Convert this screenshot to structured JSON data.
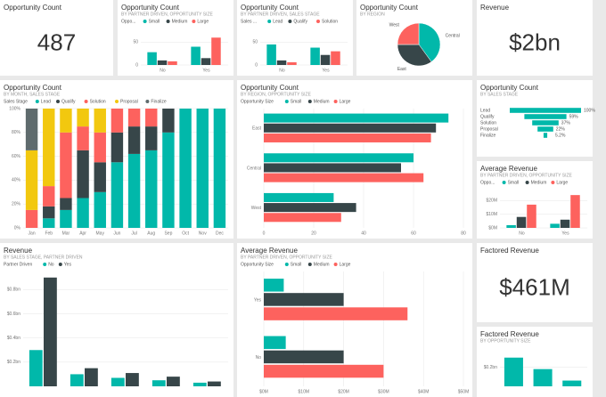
{
  "chart_data": [
    {
      "type": "card",
      "title": "Opportunity Count",
      "value": "487"
    },
    {
      "type": "column",
      "title": "Opportunity Count",
      "subtitle": "BY PARTNER DRIVEN, OPPORTUNITY SIZE",
      "legend_title": "Oppo...",
      "categories": [
        "No",
        "Yes"
      ],
      "ylim": [
        0,
        80
      ],
      "yticks": [
        0,
        50
      ],
      "series": [
        {
          "name": "Small",
          "color": "#01b8aa",
          "values": [
            28,
            40
          ]
        },
        {
          "name": "Medium",
          "color": "#374649",
          "values": [
            10,
            15
          ]
        },
        {
          "name": "Large",
          "color": "#fd625e",
          "values": [
            8,
            60
          ]
        }
      ]
    },
    {
      "type": "column",
      "title": "Opportunity Count",
      "subtitle": "BY PARTNER DRIVEN, SALES STAGE",
      "legend_title": "Sales ...",
      "categories": [
        "No",
        "Yes"
      ],
      "ylim": [
        0,
        80
      ],
      "yticks": [
        0,
        50
      ],
      "series": [
        {
          "name": "Lead",
          "color": "#01b8aa",
          "values": [
            45,
            38
          ]
        },
        {
          "name": "Qualify",
          "color": "#374649",
          "values": [
            10,
            22
          ]
        },
        {
          "name": "Solution",
          "color": "#fd625e",
          "values": [
            6,
            30
          ]
        }
      ]
    },
    {
      "type": "pie",
      "title": "Opportunity Count",
      "subtitle": "BY REGION",
      "categories": [
        "Central",
        "East",
        "West"
      ],
      "values": [
        40,
        35,
        25
      ],
      "colors": [
        "#01b8aa",
        "#374649",
        "#fd625e"
      ]
    },
    {
      "type": "card",
      "title": "Revenue",
      "value": "$2bn"
    },
    {
      "type": "column",
      "stacked": true,
      "title": "Opportunity Count",
      "subtitle": "BY MONTH, SALES STAGE",
      "legend_title": "Sales Stage",
      "categories": [
        "Jan",
        "Feb",
        "Mar",
        "Apr",
        "May",
        "Jun",
        "Jul",
        "Aug",
        "Sep",
        "Oct",
        "Nov",
        "Dec"
      ],
      "ylim": [
        0,
        100
      ],
      "yticks": [
        {
          "value": 0,
          "label": "0%"
        },
        {
          "value": 20,
          "label": "20%"
        },
        {
          "value": 40,
          "label": "40%"
        },
        {
          "value": 60,
          "label": "60%"
        },
        {
          "value": 80,
          "label": "80%"
        },
        {
          "value": 100,
          "label": "100%"
        }
      ],
      "series": [
        {
          "name": "Lead",
          "color": "#01b8aa",
          "values": [
            0,
            8,
            15,
            25,
            30,
            55,
            62,
            65,
            80,
            100,
            100,
            100
          ]
        },
        {
          "name": "Qualify",
          "color": "#374649",
          "values": [
            0,
            10,
            10,
            40,
            25,
            25,
            23,
            20,
            20,
            0,
            0,
            0
          ]
        },
        {
          "name": "Solution",
          "color": "#fd625e",
          "values": [
            15,
            17,
            55,
            20,
            25,
            20,
            15,
            15,
            0,
            0,
            0,
            0
          ]
        },
        {
          "name": "Proposal",
          "color": "#f2c80f",
          "values": [
            50,
            65,
            20,
            15,
            20,
            0,
            0,
            0,
            0,
            0,
            0,
            0
          ]
        },
        {
          "name": "Finalize",
          "color": "#5f6b6d",
          "values": [
            35,
            0,
            0,
            0,
            0,
            0,
            0,
            0,
            0,
            0,
            0,
            0
          ]
        }
      ]
    },
    {
      "type": "hbar",
      "title": "Opportunity Count",
      "subtitle": "BY REGION, OPPORTUNITY SIZE",
      "legend_title": "Opportunity Size",
      "categories": [
        "East",
        "Central",
        "West"
      ],
      "xlim": [
        0,
        80
      ],
      "xticks": [
        0,
        20,
        40,
        60,
        80
      ],
      "series": [
        {
          "name": "Small",
          "color": "#01b8aa",
          "values": [
            74,
            60,
            28
          ]
        },
        {
          "name": "Medium",
          "color": "#374649",
          "values": [
            69,
            55,
            37
          ]
        },
        {
          "name": "Large",
          "color": "#fd625e",
          "values": [
            67,
            64,
            31
          ]
        }
      ]
    },
    {
      "type": "funnel",
      "title": "Opportunity Count",
      "subtitle": "BY SALES STAGE",
      "color": "#01b8aa",
      "categories": [
        "Lead",
        "Qualify",
        "Solution",
        "Proposal",
        "Finalize"
      ],
      "values": [
        100,
        59,
        37,
        22,
        5.2
      ],
      "value_labels": [
        "100%",
        "59%",
        "37%",
        "22%",
        "5.2%"
      ]
    },
    {
      "type": "column",
      "title": "Average Revenue",
      "subtitle": "BY PARTNER DRIVEN, OPPORTUNITY SIZE",
      "legend_title": "Oppo...",
      "categories": [
        "No",
        "Yes"
      ],
      "ylim": [
        0,
        28
      ],
      "yticks": [
        {
          "value": 0,
          "label": "$0M"
        },
        {
          "value": 10,
          "label": "$10M"
        },
        {
          "value": 20,
          "label": "$20M"
        }
      ],
      "series": [
        {
          "name": "Small",
          "color": "#01b8aa",
          "values": [
            2,
            3
          ]
        },
        {
          "name": "Medium",
          "color": "#374649",
          "values": [
            8,
            6
          ]
        },
        {
          "name": "Large",
          "color": "#fd625e",
          "values": [
            17,
            24
          ]
        }
      ]
    },
    {
      "type": "column",
      "title": "Revenue",
      "subtitle": "BY SALES STAGE, PARTNER DRIVEN",
      "legend_title": "Partner Driven",
      "categories": [
        null,
        null,
        null,
        null,
        null
      ],
      "ylim": [
        0,
        0.95
      ],
      "yticks": [
        {
          "value": 0.2,
          "label": "$0.2bn"
        },
        {
          "value": 0.4,
          "label": "$0.4bn"
        },
        {
          "value": 0.6,
          "label": "$0.6bn"
        },
        {
          "value": 0.8,
          "label": "$0.8bn"
        }
      ],
      "series": [
        {
          "name": "No",
          "color": "#01b8aa",
          "values": [
            0.3,
            0.1,
            0.07,
            0.05,
            0.03
          ]
        },
        {
          "name": "Yes",
          "color": "#374649",
          "values": [
            0.9,
            0.15,
            0.11,
            0.08,
            0.04
          ]
        }
      ]
    },
    {
      "type": "hbar",
      "title": "Average Revenue",
      "subtitle": "BY PARTNER DRIVEN, OPPORTUNITY SIZE",
      "legend_title": "Opportunity Size",
      "categories": [
        "Yes",
        "No"
      ],
      "xlim": [
        0,
        50
      ],
      "xticks": [
        {
          "value": 0,
          "label": "$0M"
        },
        {
          "value": 10,
          "label": "$10M"
        },
        {
          "value": 20,
          "label": "$20M"
        },
        {
          "value": 30,
          "label": "$30M"
        },
        {
          "value": 40,
          "label": "$40M"
        },
        {
          "value": 50,
          "label": "$50M"
        }
      ],
      "series": [
        {
          "name": "Small",
          "color": "#01b8aa",
          "values": [
            5,
            5.5
          ]
        },
        {
          "name": "Medium",
          "color": "#374649",
          "values": [
            20,
            20
          ]
        },
        {
          "name": "Large",
          "color": "#fd625e",
          "values": [
            36,
            30
          ]
        }
      ]
    },
    {
      "type": "card",
      "title": "Factored Revenue",
      "value": "$461M"
    },
    {
      "type": "column",
      "title": "Factored Revenue",
      "subtitle": "BY OPPORTUNITY SIZE",
      "categories": [
        null,
        null,
        null
      ],
      "ylim": [
        0,
        0.4
      ],
      "yticks": [
        {
          "value": 0.2,
          "label": "$0.2bn"
        }
      ],
      "values": [
        0.3,
        0.18,
        0.06
      ],
      "color": "#01b8aa"
    }
  ]
}
